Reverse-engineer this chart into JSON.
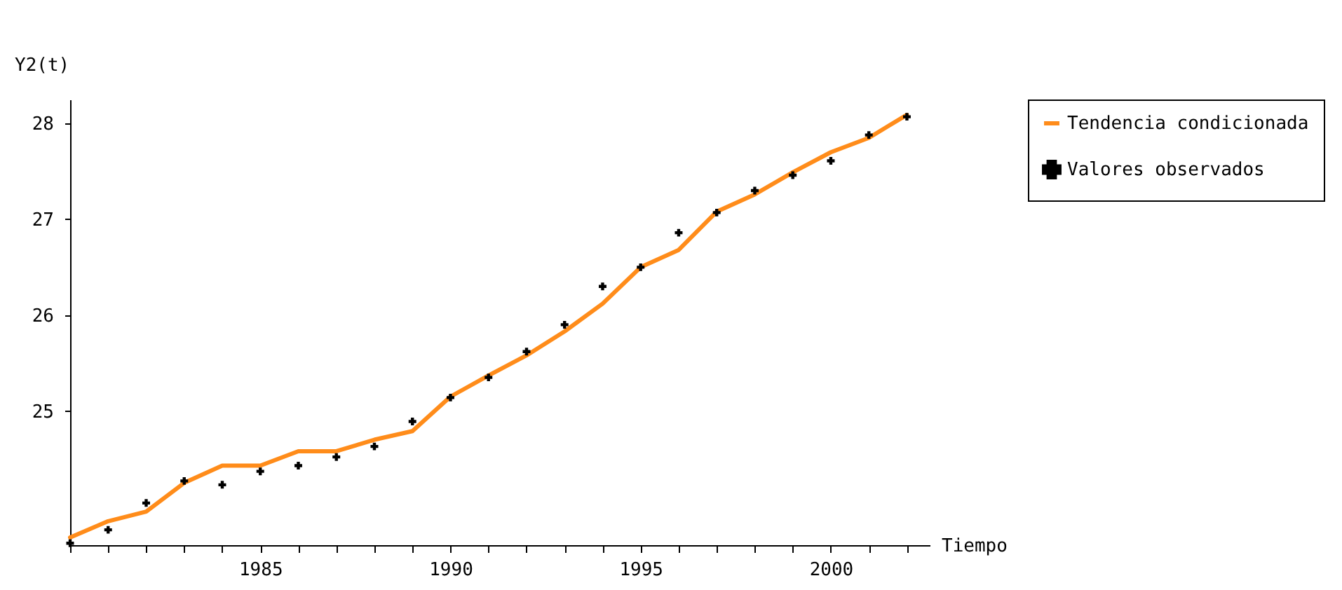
{
  "chart_data": {
    "type": "line",
    "xlabel": "Tiempo",
    "ylabel": "Y2(t)",
    "x": [
      1980,
      1981,
      1982,
      1983,
      1984,
      1985,
      1986,
      1987,
      1988,
      1989,
      1990,
      1991,
      1992,
      1993,
      1994,
      1995,
      1996,
      1997,
      1998,
      1999,
      2000,
      2001,
      2002
    ],
    "series": [
      {
        "name": "Tendencia condicionada",
        "type": "line",
        "marker": "none",
        "color": "#ff8c1a",
        "values": [
          23.68,
          23.85,
          23.95,
          24.25,
          24.43,
          24.43,
          24.58,
          24.58,
          24.7,
          24.79,
          25.15,
          25.37,
          25.58,
          25.83,
          26.12,
          26.5,
          26.68,
          27.08,
          27.26,
          27.49,
          27.7,
          27.85,
          28.09
        ]
      },
      {
        "name": "Valores observados",
        "type": "scatter",
        "color": "#000000",
        "values": [
          23.62,
          23.76,
          24.04,
          24.27,
          24.23,
          24.37,
          24.43,
          24.52,
          24.63,
          24.89,
          25.14,
          25.35,
          25.62,
          25.9,
          26.3,
          26.5,
          26.86,
          27.07,
          27.3,
          27.46,
          27.61,
          27.88,
          28.07
        ]
      }
    ],
    "xlim": [
      1980,
      2002.6
    ],
    "ylim": [
      23.6,
      28.25
    ],
    "xticks": [
      {
        "value": 1980,
        "label": null
      },
      {
        "value": 1981,
        "label": null
      },
      {
        "value": 1982,
        "label": null
      },
      {
        "value": 1983,
        "label": null
      },
      {
        "value": 1984,
        "label": null
      },
      1985,
      {
        "value": 1986,
        "label": null
      },
      {
        "value": 1987,
        "label": null
      },
      {
        "value": 1988,
        "label": null
      },
      {
        "value": 1989,
        "label": null
      },
      1990,
      {
        "value": 1991,
        "label": null
      },
      {
        "value": 1992,
        "label": null
      },
      {
        "value": 1993,
        "label": null
      },
      {
        "value": 1994,
        "label": null
      },
      1995,
      {
        "value": 1996,
        "label": null
      },
      {
        "value": 1997,
        "label": null
      },
      {
        "value": 1998,
        "label": null
      },
      {
        "value": 1999,
        "label": null
      },
      2000,
      {
        "value": 2001,
        "label": null
      },
      {
        "value": 2002,
        "label": null
      }
    ],
    "yticks": [
      25,
      26,
      27,
      28
    ],
    "marker": "cross",
    "line_style": "solid",
    "legend": "right",
    "grid": false
  }
}
